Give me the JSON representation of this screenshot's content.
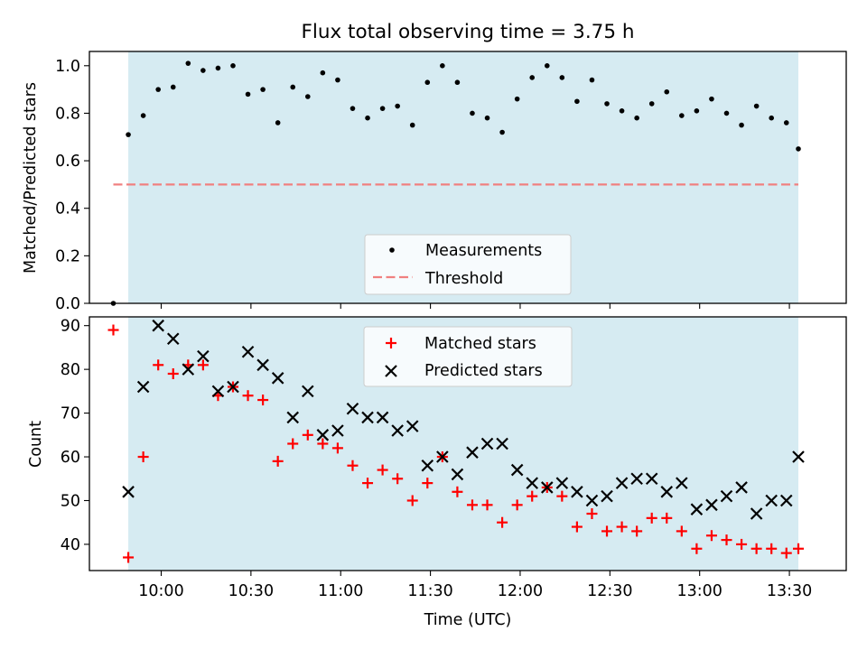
{
  "chart_data": {
    "title": "Flux total observing time = 3.75 h",
    "xlabel": "Time (UTC)",
    "x_ticks": [
      "10:00",
      "10:30",
      "11:00",
      "11:30",
      "12:00",
      "12:30",
      "13:00",
      "13:30"
    ],
    "x_range": [
      "09:36",
      "13:49"
    ],
    "observing_window": [
      "09:49",
      "13:33"
    ],
    "colors": {
      "shade": "#add8e6",
      "threshold": "#f08080",
      "matched": "#ff0000",
      "predicted": "#000000",
      "measurement": "#000000"
    },
    "panels": [
      {
        "type": "scatter",
        "ylabel": "Matched/Predicted stars",
        "ylim": [
          0,
          1.06
        ],
        "yticks": [
          "0.0",
          "0.2",
          "0.4",
          "0.6",
          "0.8",
          "1.0"
        ],
        "legend_placement": "lower center",
        "threshold": {
          "name": "Threshold",
          "value": 0.5,
          "x_range": [
            "09:44",
            "13:33"
          ]
        },
        "series": [
          {
            "name": "Measurements",
            "x": [
              "09:44",
              "09:49",
              "09:54",
              "09:59",
              "10:04",
              "10:09",
              "10:14",
              "10:19",
              "10:24",
              "10:29",
              "10:34",
              "10:39",
              "10:44",
              "10:49",
              "10:54",
              "10:59",
              "11:04",
              "11:09",
              "11:14",
              "11:19",
              "11:24",
              "11:29",
              "11:34",
              "11:39",
              "11:44",
              "11:49",
              "11:54",
              "11:59",
              "12:04",
              "12:09",
              "12:14",
              "12:19",
              "12:24",
              "12:29",
              "12:34",
              "12:39",
              "12:44",
              "12:49",
              "12:54",
              "12:59",
              "13:04",
              "13:09",
              "13:14",
              "13:19",
              "13:24",
              "13:29",
              "13:33"
            ],
            "y": [
              0.0,
              0.71,
              0.79,
              0.9,
              0.91,
              1.01,
              0.98,
              0.99,
              1.0,
              0.88,
              0.9,
              0.76,
              0.91,
              0.87,
              0.97,
              0.94,
              0.82,
              0.78,
              0.82,
              0.83,
              0.75,
              0.93,
              1.0,
              0.93,
              0.8,
              0.78,
              0.72,
              0.86,
              0.95,
              1.0,
              0.95,
              0.85,
              0.94,
              0.84,
              0.81,
              0.78,
              0.84,
              0.89,
              0.79,
              0.81,
              0.86,
              0.8,
              0.75,
              0.83,
              0.78,
              0.76,
              0.65
            ]
          }
        ]
      },
      {
        "type": "scatter",
        "ylabel": "Count",
        "ylim": [
          34,
          92
        ],
        "yticks": [
          "40",
          "50",
          "60",
          "70",
          "80",
          "90"
        ],
        "legend_placement": "upper center",
        "series": [
          {
            "name": "Matched stars",
            "x": [
              "09:44",
              "09:49",
              "09:54",
              "09:59",
              "10:04",
              "10:09",
              "10:14",
              "10:19",
              "10:24",
              "10:29",
              "10:34",
              "10:39",
              "10:44",
              "10:49",
              "10:54",
              "10:59",
              "11:04",
              "11:09",
              "11:14",
              "11:19",
              "11:24",
              "11:29",
              "11:34",
              "11:39",
              "11:44",
              "11:49",
              "11:54",
              "11:59",
              "12:04",
              "12:09",
              "12:14",
              "12:19",
              "12:24",
              "12:29",
              "12:34",
              "12:39",
              "12:44",
              "12:49",
              "12:54",
              "12:59",
              "13:04",
              "13:09",
              "13:14",
              "13:19",
              "13:24",
              "13:29",
              "13:33"
            ],
            "y": [
              89,
              37,
              60,
              81,
              79,
              81,
              81,
              74,
              76,
              74,
              73,
              59,
              63,
              65,
              63,
              62,
              58,
              54,
              57,
              55,
              50,
              54,
              60,
              52,
              49,
              49,
              45,
              49,
              51,
              53,
              51,
              44,
              47,
              43,
              44,
              43,
              46,
              46,
              43,
              39,
              42,
              41,
              40,
              39,
              39,
              38,
              39
            ]
          },
          {
            "name": "Predicted stars",
            "x": [
              "09:49",
              "09:54",
              "09:59",
              "10:04",
              "10:09",
              "10:14",
              "10:19",
              "10:24",
              "10:29",
              "10:34",
              "10:39",
              "10:44",
              "10:49",
              "10:54",
              "10:59",
              "11:04",
              "11:09",
              "11:14",
              "11:19",
              "11:24",
              "11:29",
              "11:34",
              "11:39",
              "11:44",
              "11:49",
              "11:54",
              "11:59",
              "12:04",
              "12:09",
              "12:14",
              "12:19",
              "12:24",
              "12:29",
              "12:34",
              "12:39",
              "12:44",
              "12:49",
              "12:54",
              "12:59",
              "13:04",
              "13:09",
              "13:14",
              "13:19",
              "13:24",
              "13:29",
              "13:33"
            ],
            "y": [
              52,
              76,
              90,
              87,
              80,
              83,
              75,
              76,
              84,
              81,
              78,
              69,
              75,
              65,
              66,
              71,
              69,
              69,
              66,
              67,
              58,
              60,
              56,
              61,
              63,
              63,
              57,
              54,
              53,
              54,
              52,
              50,
              51,
              54,
              55,
              55,
              52,
              54,
              48,
              49,
              51,
              53,
              47,
              50,
              50,
              60
            ]
          }
        ]
      }
    ]
  }
}
